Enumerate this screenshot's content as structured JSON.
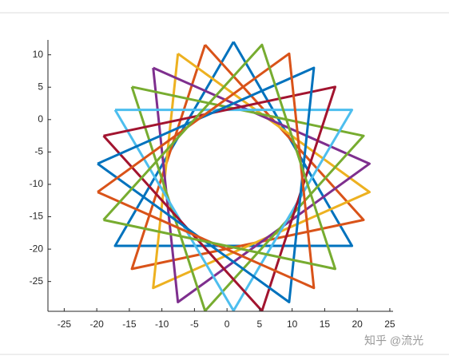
{
  "chart_data": {
    "type": "line",
    "xlim": [
      -27.5,
      25.5
    ],
    "ylim": [
      -29.6,
      12.3
    ],
    "xticks": [
      -25,
      -20,
      -15,
      -10,
      -5,
      0,
      5,
      10,
      15,
      20,
      25
    ],
    "yticks": [
      -25,
      -20,
      -15,
      -10,
      -5,
      0,
      5,
      10
    ],
    "series": [
      {
        "color": "#0072BD",
        "x": [
          1,
          -17.19,
          19.19,
          1
        ],
        "y": [
          12,
          -19.5,
          -19.5,
          12
        ]
      },
      {
        "color": "#D95319",
        "x": [
          -3.37,
          -14.61,
          20.97,
          -3.37
        ],
        "y": [
          11.54,
          -23.05,
          -15.49,
          11.54
        ]
      },
      {
        "color": "#EDB120",
        "x": [
          -7.54,
          -11.34,
          21.88,
          -7.54
        ],
        "y": [
          10.18,
          -25.99,
          -11.19,
          10.18
        ]
      },
      {
        "color": "#7E2F8E",
        "x": [
          -11.34,
          -7.54,
          21.88,
          -11.34
        ],
        "y": [
          7.99,
          -28.18,
          -6.81,
          7.99
        ]
      },
      {
        "color": "#77AC30",
        "x": [
          -14.61,
          -3.37,
          20.97,
          -14.61
        ],
        "y": [
          5.05,
          -29.54,
          -2.51,
          5.05
        ]
      },
      {
        "color": "#4DBEEE",
        "x": [
          -17.19,
          1,
          19.19,
          -17.19
        ],
        "y": [
          1.5,
          -29.5,
          1.5,
          1.5
        ]
      },
      {
        "color": "#A2142F",
        "x": [
          -18.97,
          5.37,
          16.61,
          -18.97
        ],
        "y": [
          -2.51,
          -29.54,
          5.05,
          -2.51
        ]
      },
      {
        "color": "#0072BD",
        "x": [
          -19.88,
          9.54,
          13.34,
          -19.88
        ],
        "y": [
          -6.81,
          -28.18,
          7.99,
          -6.81
        ]
      },
      {
        "color": "#D95319",
        "x": [
          -19.88,
          13.34,
          9.54,
          -19.88
        ],
        "y": [
          -11.19,
          -25.99,
          10.18,
          -11.19
        ]
      },
      {
        "color": "#77AC30",
        "x": [
          -18.97,
          16.61,
          5.37,
          -18.97
        ],
        "y": [
          -15.49,
          -23.05,
          11.54,
          -15.49
        ]
      }
    ]
  },
  "watermark": "知乎 @流光"
}
